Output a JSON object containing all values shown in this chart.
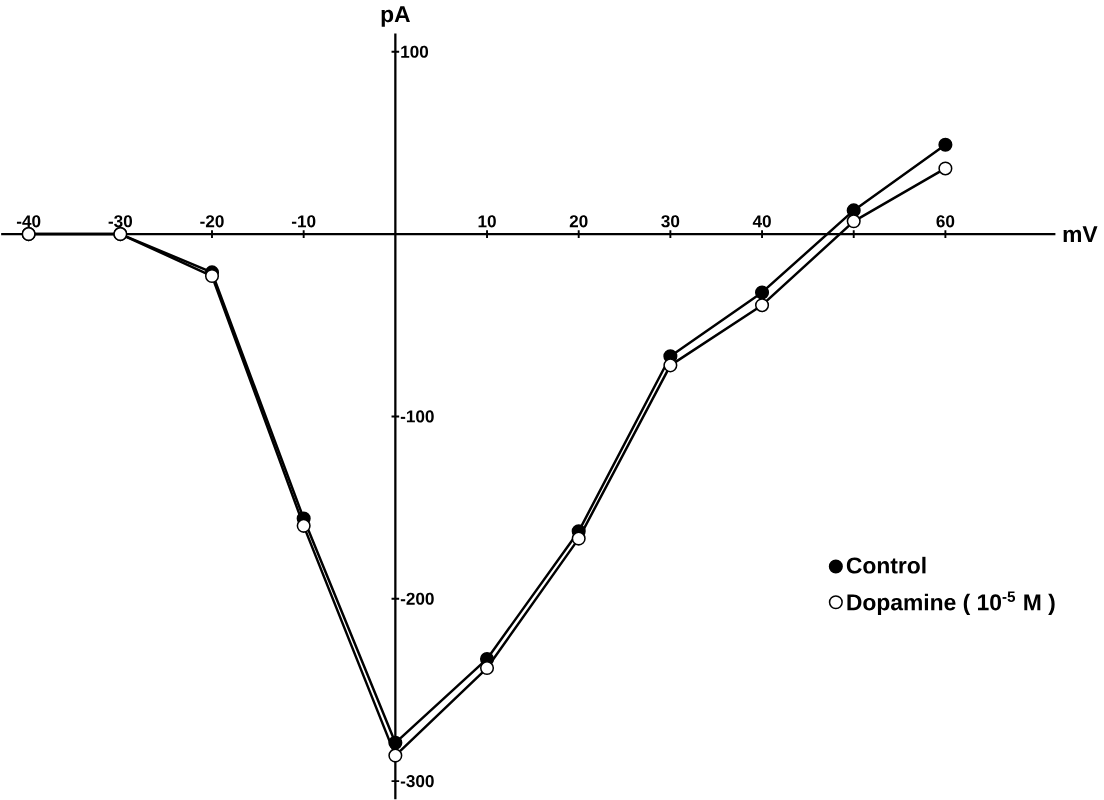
{
  "chart_data": {
    "type": "line",
    "xlabel": "mV",
    "ylabel": "pA",
    "x": [
      -40,
      -30,
      -20,
      -10,
      0,
      10,
      20,
      30,
      40,
      50,
      60
    ],
    "series": [
      {
        "name": "Control",
        "color": "#000000",
        "values": [
          0,
          0,
          -21,
          -156,
          -279,
          -233,
          -163,
          -67,
          -32,
          13,
          49
        ]
      },
      {
        "name": "Dopamine ( 10$^{-5}$ M )",
        "color": "#000000",
        "values": [
          0,
          0,
          -23,
          -160,
          -286,
          -238,
          -167,
          -72,
          -39,
          7,
          36
        ]
      }
    ],
    "xlim": [
      -43,
      72
    ],
    "ylim": [
      -310,
      110
    ],
    "xticks": [
      -40,
      -30,
      -20,
      -10,
      10,
      20,
      30,
      40,
      {
        "value": 50,
        "label": null
      },
      60
    ],
    "yticks": [
      100,
      -100,
      -200,
      -300
    ],
    "marker": "circle",
    "legend": "right",
    "grid": false
  }
}
